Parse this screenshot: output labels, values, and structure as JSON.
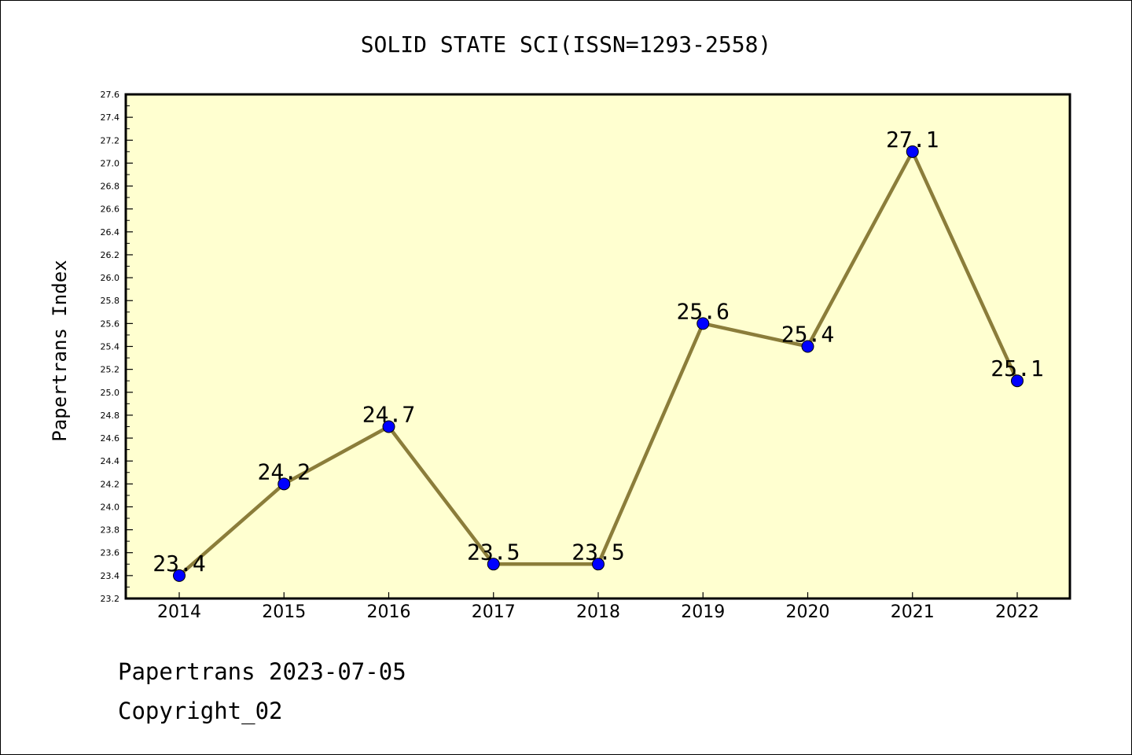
{
  "chart_data": {
    "type": "line",
    "title": "SOLID STATE SCI(ISSN=1293-2558)",
    "ylabel": "Papertrans Index",
    "xlabel": "",
    "categories": [
      "2014",
      "2015",
      "2016",
      "2017",
      "2018",
      "2019",
      "2020",
      "2021",
      "2022"
    ],
    "series": [
      {
        "values": [
          23.4,
          24.2,
          24.7,
          23.5,
          23.5,
          25.6,
          25.4,
          27.1,
          25.1
        ]
      }
    ],
    "data_labels": [
      "23.4",
      "24.2",
      "24.7",
      "23.5",
      "23.5",
      "25.6",
      "25.4",
      "27.1",
      "25.1"
    ],
    "ylim": [
      23.2,
      27.6
    ],
    "yticks": [
      "23.2",
      "23.4",
      "23.6",
      "23.8",
      "24.0",
      "24.2",
      "24.4",
      "24.6",
      "24.8",
      "25.0",
      "25.2",
      "25.4",
      "25.6",
      "25.8",
      "26.0",
      "26.2",
      "26.4",
      "26.6",
      "26.8",
      "27.0",
      "27.2",
      "27.4",
      "27.6"
    ],
    "grid": false,
    "colors": {
      "plot_background": "#ffffd0",
      "line": "#8b7d3a",
      "marker": "#0000ff"
    }
  },
  "footer": {
    "line1": "Papertrans 2023-07-05",
    "line2": "Copyright_02"
  }
}
